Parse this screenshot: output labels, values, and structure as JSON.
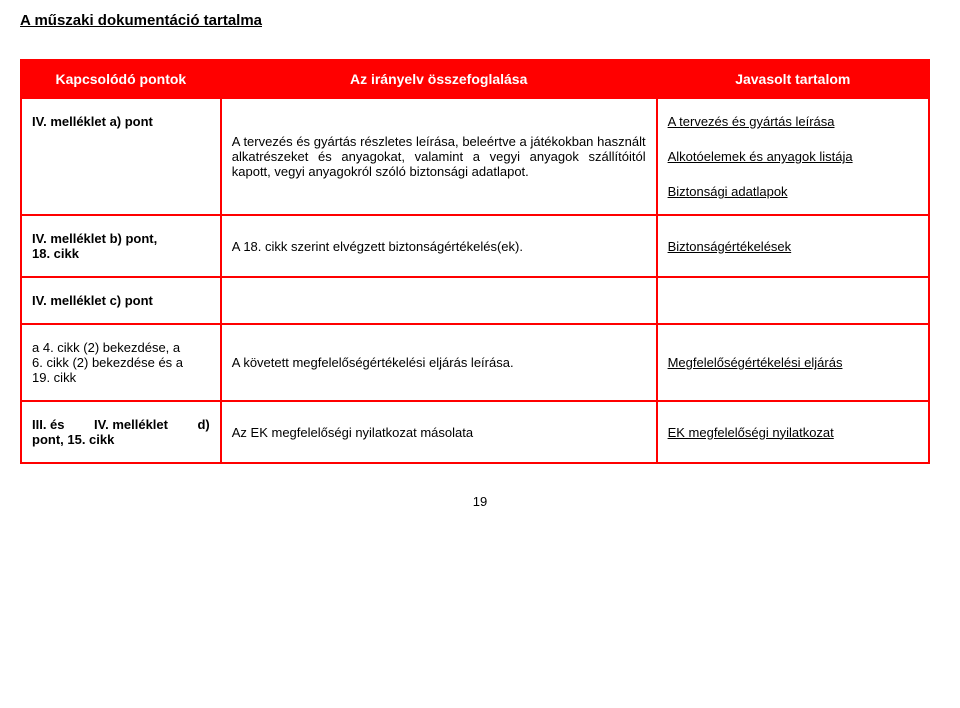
{
  "pageTitle": "A műszaki dokumentáció tartalma",
  "headers": {
    "col1": "Kapcsolódó pontok",
    "col2": "Az irányelv összefoglalása",
    "col3": "Javasolt tartalom"
  },
  "rows": [
    {
      "col1": "IV. melléklet a) pont",
      "col2": "A tervezés és gyártás részletes leírása, beleértve a játékokban használt alkatrészeket és anyagokat, valamint a vegyi anyagok szállítóitól kapott, vegyi anyagokról szóló biztonsági adatlapot.",
      "col3_lines": [
        "A tervezés és gyártás leírása",
        "Alkotóelemek és anyagok listája",
        "Biztonsági adatlapok"
      ]
    },
    {
      "col1_lines": [
        "IV. melléklet b) pont,",
        "18. cikk"
      ],
      "col2": "A 18. cikk szerint elvégzett biztonságértékelés(ek).",
      "col3": "Biztonságértékelések"
    },
    {
      "col1": "IV. melléklet c) pont",
      "col2": "",
      "col3": ""
    },
    {
      "col1_lines": [
        "a 4. cikk (2) bekezdése, a",
        "6. cikk (2) bekezdése és a",
        "19. cikk"
      ],
      "col2": "A követett megfelelőségértékelési eljárás leírása.",
      "col3": "Megfelelőségértékelési eljárás"
    },
    {
      "col1_lines_mixed": [
        {
          "parts": [
            "III. és",
            "IV. melléklet",
            "d)"
          ]
        },
        {
          "text": "pont, 15. cikk"
        }
      ],
      "col2": "Az EK megfelelőségi nyilatkozat másolata",
      "col3": "EK megfelelőségi nyilatkozat"
    }
  ],
  "pageNumber": "19",
  "colors": {
    "accent": "#ff0000",
    "text": "#000000",
    "bg": "#ffffff"
  }
}
